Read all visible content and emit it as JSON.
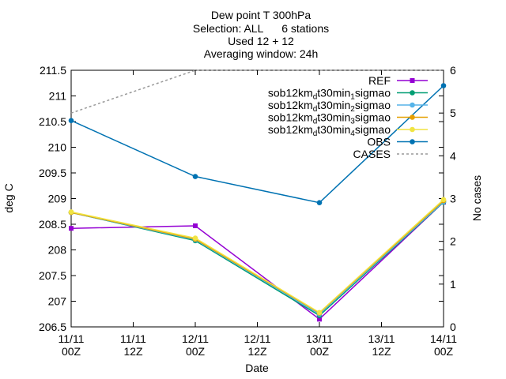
{
  "chart_data": {
    "type": "line",
    "title_lines": [
      "Dew point T 300hPa",
      "Selection: ALL      6 stations",
      "Used 12 + 12",
      "Averaging window: 24h"
    ],
    "xlabel": "Date",
    "ylabel": "deg C",
    "y2label": "No cases",
    "x_ticks": [
      {
        "line1": "11/11",
        "line2": "00Z"
      },
      {
        "line1": "11/11",
        "line2": "12Z"
      },
      {
        "line1": "12/11",
        "line2": "00Z"
      },
      {
        "line1": "12/11",
        "line2": "12Z"
      },
      {
        "line1": "13/11",
        "line2": "00Z"
      },
      {
        "line1": "13/11",
        "line2": "12Z"
      },
      {
        "line1": "14/11",
        "line2": "00Z"
      }
    ],
    "ylim": [
      206.5,
      211.5
    ],
    "y_ticks": [
      "206.5",
      "207",
      "207.5",
      "208",
      "208.5",
      "209",
      "209.5",
      "210",
      "210.5",
      "211",
      "211.5"
    ],
    "y2lim": [
      0,
      6
    ],
    "y2_ticks": [
      "0",
      "1",
      "2",
      "3",
      "4",
      "5",
      "6"
    ],
    "legend_position": "top-right",
    "series": [
      {
        "name_parts": [
          {
            "t": "REF"
          }
        ],
        "color": "#9400d3",
        "marker": "square",
        "dash": false,
        "axis": "y",
        "points": [
          [
            0,
            208.42
          ],
          [
            24,
            208.47
          ],
          [
            48,
            206.65
          ],
          [
            72,
            208.93
          ]
        ]
      },
      {
        "name_parts": [
          {
            "t": "sob12km"
          },
          {
            "t": "d",
            "sub": true
          },
          {
            "t": "t30min"
          },
          {
            "t": "1",
            "sub": true
          },
          {
            "t": "sigmao"
          }
        ],
        "color": "#009e73",
        "marker": "circle",
        "dash": false,
        "axis": "y",
        "points": [
          [
            0,
            208.73
          ],
          [
            24,
            208.18
          ],
          [
            48,
            206.72
          ],
          [
            72,
            208.93
          ]
        ]
      },
      {
        "name_parts": [
          {
            "t": "sob12km"
          },
          {
            "t": "d",
            "sub": true
          },
          {
            "t": "t30min"
          },
          {
            "t": "2",
            "sub": true
          },
          {
            "t": "sigmao"
          }
        ],
        "color": "#56b4e9",
        "marker": "circle",
        "dash": false,
        "axis": "y",
        "points": [
          [
            0,
            208.73
          ],
          [
            24,
            208.2
          ],
          [
            48,
            206.75
          ],
          [
            72,
            208.94
          ]
        ]
      },
      {
        "name_parts": [
          {
            "t": "sob12km"
          },
          {
            "t": "d",
            "sub": true
          },
          {
            "t": "t30min"
          },
          {
            "t": "3",
            "sub": true
          },
          {
            "t": "sigmao"
          }
        ],
        "color": "#e69f00",
        "marker": "circle",
        "dash": false,
        "axis": "y",
        "points": [
          [
            0,
            208.73
          ],
          [
            24,
            208.21
          ],
          [
            48,
            206.77
          ],
          [
            72,
            208.96
          ]
        ]
      },
      {
        "name_parts": [
          {
            "t": "sob12km"
          },
          {
            "t": "d",
            "sub": true
          },
          {
            "t": "t30min"
          },
          {
            "t": "4",
            "sub": true
          },
          {
            "t": "sigmao"
          }
        ],
        "color": "#f0e442",
        "marker": "circle",
        "dash": false,
        "axis": "y",
        "points": [
          [
            0,
            208.74
          ],
          [
            24,
            208.23
          ],
          [
            48,
            206.78
          ],
          [
            72,
            208.98
          ]
        ]
      },
      {
        "name_parts": [
          {
            "t": "OBS"
          }
        ],
        "color": "#0072b2",
        "marker": "circle",
        "dash": false,
        "axis": "y",
        "points": [
          [
            0,
            210.52
          ],
          [
            24,
            209.43
          ],
          [
            48,
            208.92
          ],
          [
            72,
            211.2
          ]
        ]
      },
      {
        "name_parts": [
          {
            "t": "CASES"
          }
        ],
        "color": "#999999",
        "marker": "none",
        "dash": true,
        "axis": "y2",
        "points": [
          [
            0,
            5
          ],
          [
            24,
            6
          ],
          [
            48,
            6
          ],
          [
            72,
            6
          ]
        ]
      }
    ]
  }
}
